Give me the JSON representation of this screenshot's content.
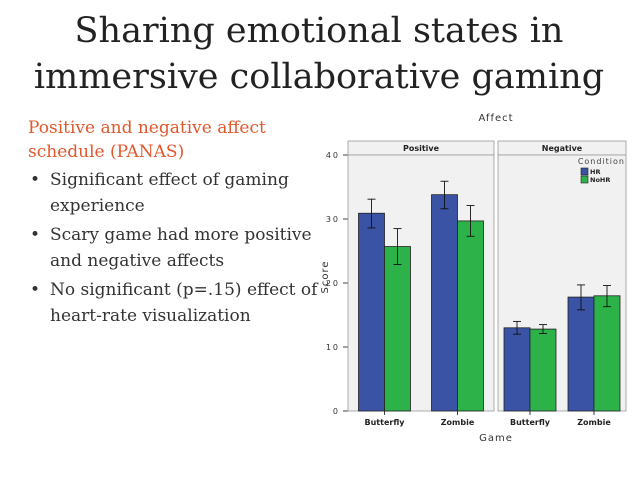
{
  "slide": {
    "title": "Sharing emotional states in immersive collaborative gaming",
    "subtitle": "Positive and negative affect schedule (PANAS)",
    "bullets": [
      "Significant effect of gaming experience",
      "Scary game had more positive and negative affects",
      "No significant (p=.15) effect of heart-rate visualization"
    ]
  },
  "chart_data": {
    "type": "bar",
    "title": "Affect",
    "xlabel": "Game",
    "ylabel": "Score",
    "ylim": [
      0,
      40
    ],
    "yticks": [
      0,
      10,
      20,
      30,
      40
    ],
    "grid": false,
    "legend_title": "Condition",
    "legend_placement": "top-right",
    "panels": [
      {
        "name": "Positive",
        "categories": [
          "Butterfly",
          "Zombie"
        ],
        "series": [
          {
            "name": "HR",
            "color": "#3a53a4",
            "values": [
              30.9,
              33.8
            ],
            "error_low": [
              28.6,
              31.6
            ],
            "error_high": [
              33.1,
              35.9
            ]
          },
          {
            "name": "NoHR",
            "color": "#2db24a",
            "values": [
              25.7,
              29.7
            ],
            "error_low": [
              22.9,
              27.3
            ],
            "error_high": [
              28.5,
              32.1
            ]
          }
        ]
      },
      {
        "name": "Negative",
        "categories": [
          "Butterfly",
          "Zombie"
        ],
        "series": [
          {
            "name": "HR",
            "color": "#3a53a4",
            "values": [
              13.0,
              17.8
            ],
            "error_low": [
              12.0,
              15.8
            ],
            "error_high": [
              14.0,
              19.7
            ]
          },
          {
            "name": "NoHR",
            "color": "#2db24a",
            "values": [
              12.8,
              18.0
            ],
            "error_low": [
              12.1,
              16.3
            ],
            "error_high": [
              13.5,
              19.6
            ]
          }
        ]
      }
    ]
  }
}
